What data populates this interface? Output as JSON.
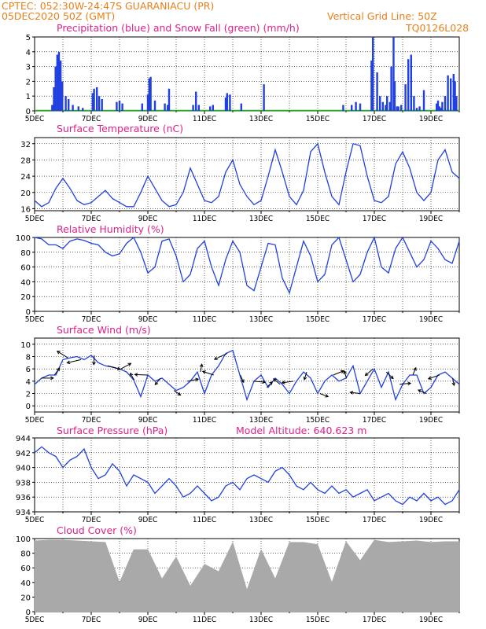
{
  "header": {
    "line1_left": "CPTEC:   052:30W-24:47S   GUARANIACU (PR)",
    "line2_left": "05DEC2020 50Z (GMT)",
    "line2_right": "Vertical Grid Line: 50Z",
    "line3_title": "Precipitation (blue) and Snow Fall (green) (mm/h)",
    "line3_right": "TQ0126L028"
  },
  "colors": {
    "orange": "#e8801a",
    "magenta": "#e0208a",
    "line": "#2040e0",
    "bars": "#2040e0",
    "snow": "#20b020",
    "cloud": "#a9a9a9"
  },
  "x_ticks": [
    "5DEC",
    "7DEC",
    "9DEC",
    "11DEC",
    "13DEC",
    "15DEC",
    "17DEC",
    "19DEC"
  ],
  "panels": [
    {
      "id": "precip",
      "title": "",
      "y_ticks": [
        "0",
        "1",
        "2",
        "3",
        "4",
        "5"
      ]
    },
    {
      "id": "temp",
      "title": "Surface Temperature (nC)",
      "y_ticks": [
        "16",
        "20",
        "24",
        "28",
        "32"
      ]
    },
    {
      "id": "rh",
      "title": "Relative Humidity (%)",
      "y_ticks": [
        "0",
        "20",
        "40",
        "60",
        "80",
        "100"
      ]
    },
    {
      "id": "wind",
      "title": "Surface Wind (m/s)",
      "y_ticks": [
        "0",
        "2",
        "4",
        "6",
        "8",
        "10"
      ]
    },
    {
      "id": "pres",
      "title": "Surface Pressure (hPa)",
      "extra": "Model Altitude: 640.623 m",
      "y_ticks": [
        "934",
        "936",
        "938",
        "940",
        "942",
        "944"
      ]
    },
    {
      "id": "cloud",
      "title": "Cloud Cover (%)",
      "y_ticks": [
        "0",
        "20",
        "40",
        "60",
        "80",
        "100"
      ]
    }
  ],
  "chart_data": [
    {
      "type": "bar",
      "title": "Precipitation (blue) and Snow Fall (green) (mm/h)",
      "ylim": [
        0,
        5
      ],
      "series": [
        {
          "name": "Precipitation (blue)",
          "x": [
            0.62,
            0.68,
            0.74,
            0.8,
            0.86,
            0.92,
            0.98,
            1.1,
            1.2,
            1.35,
            1.55,
            1.7,
            2.05,
            2.1,
            2.2,
            2.28,
            2.38,
            2.9,
            3.0,
            3.1,
            3.8,
            4.0,
            4.05,
            4.1,
            4.25,
            4.6,
            4.7,
            4.75,
            5.6,
            5.7,
            5.8,
            6.2,
            6.3,
            6.75,
            6.8,
            6.9,
            7.3,
            8.1,
            10.9,
            11.2,
            11.35,
            11.5,
            11.9,
            11.95,
            12.1,
            12.2,
            12.3,
            12.4,
            12.45,
            12.55,
            12.6,
            12.68,
            12.72,
            12.8,
            12.85,
            12.95,
            13.1,
            13.2,
            13.3,
            13.4,
            13.5,
            13.6,
            13.75,
            14.2,
            14.25,
            14.3,
            14.35,
            14.4,
            14.5,
            14.6,
            14.7,
            14.8,
            14.85,
            14.9
          ],
          "values": [
            0.4,
            1.6,
            3.0,
            3.8,
            4.0,
            3.4,
            2.0,
            1.0,
            0.8,
            0.4,
            0.3,
            0.2,
            1.2,
            1.5,
            1.6,
            1.0,
            0.8,
            0.6,
            0.7,
            0.5,
            0.5,
            1.1,
            2.2,
            2.3,
            0.7,
            0.5,
            0.4,
            1.5,
            0.4,
            1.3,
            0.4,
            0.3,
            0.4,
            0.9,
            1.2,
            1.1,
            0.5,
            1.8,
            0.4,
            0.4,
            0.6,
            0.5,
            3.4,
            5.0,
            2.6,
            1.0,
            0.6,
            0.4,
            1.0,
            0.6,
            3.0,
            5.0,
            2.0,
            0.3,
            0.3,
            0.4,
            1.8,
            3.5,
            3.8,
            1.0,
            0.2,
            0.3,
            1.4,
            0.5,
            0.7,
            0.3,
            0.2,
            0.6,
            1.0,
            2.4,
            2.2,
            2.5,
            2.0,
            1.0
          ]
        }
      ],
      "x_ticks": [
        "5DEC",
        "7DEC",
        "9DEC",
        "11DEC",
        "13DEC",
        "15DEC",
        "17DEC",
        "19DEC"
      ]
    },
    {
      "type": "line",
      "title": "Surface Temperature (nC)",
      "ylim": [
        15.5,
        33.5
      ],
      "series": [
        {
          "name": "",
          "x": [
            0,
            0.25,
            0.5,
            0.75,
            1.0,
            1.25,
            1.5,
            1.75,
            2.0,
            2.25,
            2.5,
            2.75,
            3.0,
            3.25,
            3.5,
            3.75,
            4.0,
            4.25,
            4.5,
            4.75,
            5.0,
            5.25,
            5.5,
            5.75,
            6.0,
            6.25,
            6.5,
            6.75,
            7.0,
            7.25,
            7.5,
            7.75,
            8.0,
            8.25,
            8.5,
            8.75,
            9.0,
            9.25,
            9.5,
            9.75,
            10.0,
            10.25,
            10.5,
            10.75,
            11.0,
            11.25,
            11.5,
            11.75,
            12.0,
            12.25,
            12.5,
            12.75,
            13.0,
            13.25,
            13.5,
            13.75,
            14.0,
            14.25,
            14.5,
            14.75,
            15.0
          ],
          "values": [
            18,
            16.5,
            17.5,
            21,
            23.5,
            21,
            18,
            17,
            17.5,
            19,
            20.5,
            18.5,
            17.5,
            16.5,
            16.5,
            20,
            24,
            21,
            18,
            16.5,
            17,
            20,
            26,
            22,
            18,
            17.5,
            19,
            25,
            28,
            22,
            19,
            17,
            18,
            24,
            30.5,
            25,
            19,
            17,
            20.5,
            30,
            32,
            25,
            19,
            17,
            25,
            32,
            31.5,
            24,
            18,
            17.5,
            19,
            27,
            30,
            26,
            20,
            18,
            20,
            28,
            30.5,
            25,
            23.5
          ]
        }
      ],
      "x_ticks": [
        "5DEC",
        "7DEC",
        "9DEC",
        "11DEC",
        "13DEC",
        "15DEC",
        "17DEC",
        "19DEC"
      ]
    },
    {
      "type": "line",
      "title": "Relative Humidity (%)",
      "ylim": [
        0,
        100
      ],
      "series": [
        {
          "name": "",
          "x": [
            0,
            0.25,
            0.5,
            0.75,
            1.0,
            1.25,
            1.5,
            1.75,
            2.0,
            2.25,
            2.5,
            2.75,
            3.0,
            3.25,
            3.5,
            3.75,
            4.0,
            4.25,
            4.5,
            4.75,
            5.0,
            5.25,
            5.5,
            5.75,
            6.0,
            6.25,
            6.5,
            6.75,
            7.0,
            7.25,
            7.5,
            7.75,
            8.0,
            8.25,
            8.5,
            8.75,
            9.0,
            9.25,
            9.5,
            9.75,
            10.0,
            10.25,
            10.5,
            10.75,
            11.0,
            11.25,
            11.5,
            11.75,
            12.0,
            12.25,
            12.5,
            12.75,
            13.0,
            13.25,
            13.5,
            13.75,
            14.0,
            14.25,
            14.5,
            14.75,
            15.0
          ],
          "values": [
            100,
            98,
            90,
            90,
            85,
            95,
            98,
            96,
            92,
            90,
            80,
            75,
            78,
            92,
            100,
            80,
            52,
            60,
            95,
            98,
            75,
            40,
            50,
            85,
            95,
            60,
            35,
            70,
            95,
            80,
            35,
            28,
            60,
            92,
            90,
            45,
            25,
            60,
            95,
            75,
            40,
            50,
            90,
            100,
            70,
            40,
            50,
            80,
            100,
            60,
            52,
            85,
            100,
            80,
            60,
            70,
            95,
            85,
            70,
            65,
            95
          ]
        }
      ],
      "x_ticks": [
        "5DEC",
        "7DEC",
        "9DEC",
        "11DEC",
        "13DEC",
        "15DEC",
        "17DEC",
        "19DEC"
      ]
    },
    {
      "type": "line",
      "title": "Surface Wind (m/s)",
      "ylim": [
        -1,
        11
      ],
      "series": [
        {
          "name": "",
          "x": [
            0,
            0.25,
            0.5,
            0.75,
            1.0,
            1.25,
            1.5,
            1.75,
            2.0,
            2.25,
            2.5,
            2.75,
            3.0,
            3.25,
            3.5,
            3.75,
            4.0,
            4.25,
            4.5,
            4.75,
            5.0,
            5.25,
            5.5,
            5.75,
            6.0,
            6.25,
            6.5,
            6.75,
            7.0,
            7.25,
            7.5,
            7.75,
            8.0,
            8.25,
            8.5,
            8.75,
            9.0,
            9.25,
            9.5,
            9.75,
            10.0,
            10.25,
            10.5,
            10.75,
            11.0,
            11.25,
            11.5,
            11.75,
            12.0,
            12.25,
            12.5,
            12.75,
            13.0,
            13.25,
            13.5,
            13.75,
            14.0,
            14.25,
            14.5,
            14.75,
            15.0
          ],
          "values": [
            3.5,
            4.5,
            5,
            5,
            7.5,
            7.8,
            8,
            7.5,
            8.2,
            7,
            6.5,
            6.3,
            6,
            5.5,
            4.2,
            1.5,
            5,
            4,
            4.5,
            3.5,
            2.5,
            3,
            4,
            5.5,
            2,
            5,
            6.5,
            8.5,
            9,
            5,
            1,
            4,
            5,
            3,
            4.5,
            3.5,
            2,
            4,
            5.5,
            4.5,
            2,
            4,
            5,
            4,
            4.5,
            6.5,
            2,
            4,
            6,
            3,
            5.5,
            1,
            3.5,
            5,
            5,
            2,
            3,
            5,
            5.5,
            4.5,
            3.5
          ]
        }
      ],
      "vectors_count": 32,
      "x_ticks": [
        "5DEC",
        "7DEC",
        "9DEC",
        "11DEC",
        "13DEC",
        "15DEC",
        "17DEC",
        "19DEC"
      ]
    },
    {
      "type": "line",
      "title": "Surface Pressure (hPa)",
      "annotation": "Model Altitude: 640.623 m",
      "ylim": [
        934,
        944
      ],
      "series": [
        {
          "name": "",
          "x": [
            0,
            0.25,
            0.5,
            0.75,
            1.0,
            1.25,
            1.5,
            1.75,
            2.0,
            2.25,
            2.5,
            2.75,
            3.0,
            3.25,
            3.5,
            3.75,
            4.0,
            4.25,
            4.5,
            4.75,
            5.0,
            5.25,
            5.5,
            5.75,
            6.0,
            6.25,
            6.5,
            6.75,
            7.0,
            7.25,
            7.5,
            7.75,
            8.0,
            8.25,
            8.5,
            8.75,
            9.0,
            9.25,
            9.5,
            9.75,
            10.0,
            10.25,
            10.5,
            10.75,
            11.0,
            11.25,
            11.5,
            11.75,
            12.0,
            12.25,
            12.5,
            12.75,
            13.0,
            13.25,
            13.5,
            13.75,
            14.0,
            14.25,
            14.5,
            14.75,
            15.0
          ],
          "values": [
            942,
            942.8,
            942,
            941.5,
            940,
            941,
            941.5,
            942.5,
            940,
            938.5,
            939,
            940.5,
            939.5,
            937.5,
            939,
            938.5,
            938,
            936.5,
            937.5,
            938.5,
            937.5,
            936,
            936.5,
            937.5,
            936.5,
            935.5,
            936,
            937.5,
            938,
            937,
            938.5,
            939,
            938.5,
            938,
            939.5,
            940,
            939,
            937.5,
            937,
            938,
            937,
            936.5,
            937.5,
            936.5,
            937,
            936,
            936.5,
            937,
            935.5,
            936,
            936.5,
            935.5,
            935,
            936,
            935.5,
            936.5,
            935.5,
            936,
            935,
            935.5,
            937
          ]
        }
      ],
      "x_ticks": [
        "5DEC",
        "7DEC",
        "9DEC",
        "11DEC",
        "13DEC",
        "15DEC",
        "17DEC",
        "19DEC"
      ]
    },
    {
      "type": "bar",
      "title": "Cloud Cover (%)",
      "ylim": [
        0,
        100
      ],
      "series": [
        {
          "name": "",
          "x": [
            0,
            0.5,
            1.0,
            1.5,
            2.0,
            2.5,
            3.0,
            3.5,
            4.0,
            4.5,
            5.0,
            5.5,
            6.0,
            6.5,
            7.0,
            7.5,
            8.0,
            8.5,
            9.0,
            9.5,
            10.0,
            10.5,
            11.0,
            11.5,
            12.0,
            12.5,
            13.0,
            13.5,
            14.0,
            14.5,
            15.0
          ],
          "values": [
            97,
            98,
            98,
            97,
            96,
            95,
            40,
            85,
            85,
            45,
            75,
            35,
            65,
            55,
            95,
            30,
            85,
            45,
            95,
            95,
            92,
            40,
            96,
            70,
            98,
            95,
            96,
            97,
            95,
            96,
            96
          ]
        }
      ],
      "x_ticks": [
        "5DEC",
        "7DEC",
        "9DEC",
        "11DEC",
        "13DEC",
        "15DEC",
        "17DEC",
        "19DEC"
      ]
    }
  ]
}
